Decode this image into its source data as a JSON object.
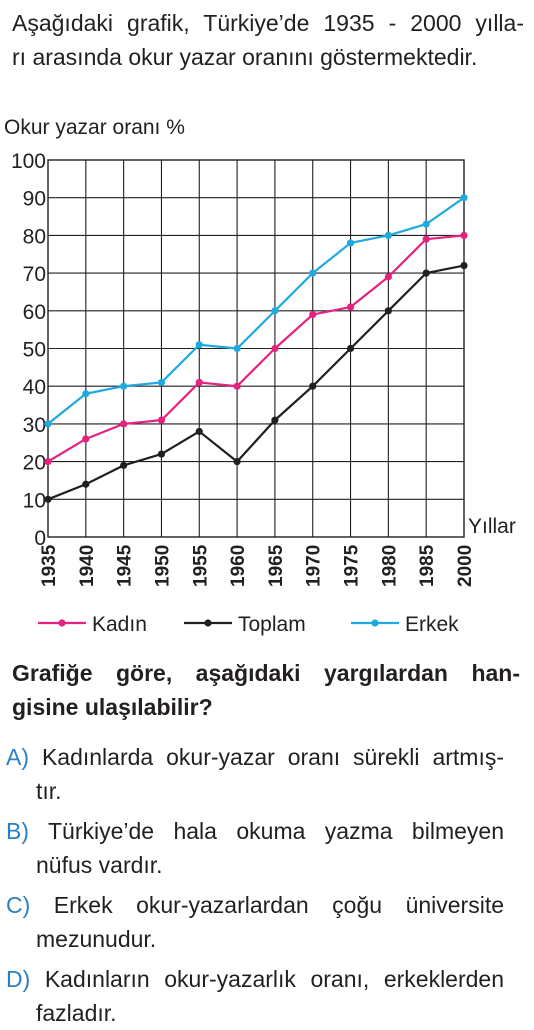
{
  "intro": {
    "line1": "Aşağıdaki grafik, Türkiye’de 1935 - 2000 yılla-",
    "line2": "rı arasında okur yazar oranını göstermektedir."
  },
  "colors": {
    "kadin": "#e5227e",
    "toplam": "#231f20",
    "erkek": "#1eaadf",
    "option_letter": "#2b7fc4"
  },
  "chart_data": {
    "type": "line",
    "ylabel": "Okur yazar oranı %",
    "xlabel": "Yıllar",
    "ylim": [
      0,
      100
    ],
    "yticks": [
      "100",
      "90",
      "80",
      "70",
      "60",
      "50",
      "40",
      "30",
      "20",
      "10",
      "0"
    ],
    "x": [
      "1935",
      "1940",
      "1945",
      "1950",
      "1955",
      "1960",
      "1965",
      "1970",
      "1975",
      "1980",
      "1985",
      "2000"
    ],
    "grid": true,
    "legend_position": "bottom",
    "series": [
      {
        "name": "Kadın",
        "color": "#e5227e",
        "values": [
          20,
          26,
          30,
          31,
          41,
          40,
          50,
          59,
          61,
          69,
          79,
          80
        ]
      },
      {
        "name": "Toplam",
        "color": "#231f20",
        "values": [
          10,
          14,
          19,
          22,
          28,
          20,
          31,
          40,
          50,
          60,
          70,
          72
        ]
      },
      {
        "name": "Erkek",
        "color": "#1eaadf",
        "values": [
          30,
          38,
          40,
          41,
          51,
          50,
          60,
          70,
          78,
          80,
          83,
          90
        ]
      }
    ]
  },
  "question": {
    "line1": "Grafiğe göre, aşağıdaki yargılardan han-",
    "line2": "gisine ulaşılabilir?"
  },
  "options": [
    {
      "letter": "A)",
      "line1": "Kadınlarda okur-yazar oranı sürekli artmış-",
      "line2": "tır."
    },
    {
      "letter": "B)",
      "line1": "Türkiye’de hala okuma yazma bilmeyen",
      "line2": "nüfus vardır."
    },
    {
      "letter": "C)",
      "line1": "Erkek okur-yazarlardan çoğu üniversite",
      "line2": "mezunudur."
    },
    {
      "letter": "D)",
      "line1": "Kadınların okur-yazarlık oranı, erkeklerden",
      "line2": "fazladır."
    }
  ]
}
